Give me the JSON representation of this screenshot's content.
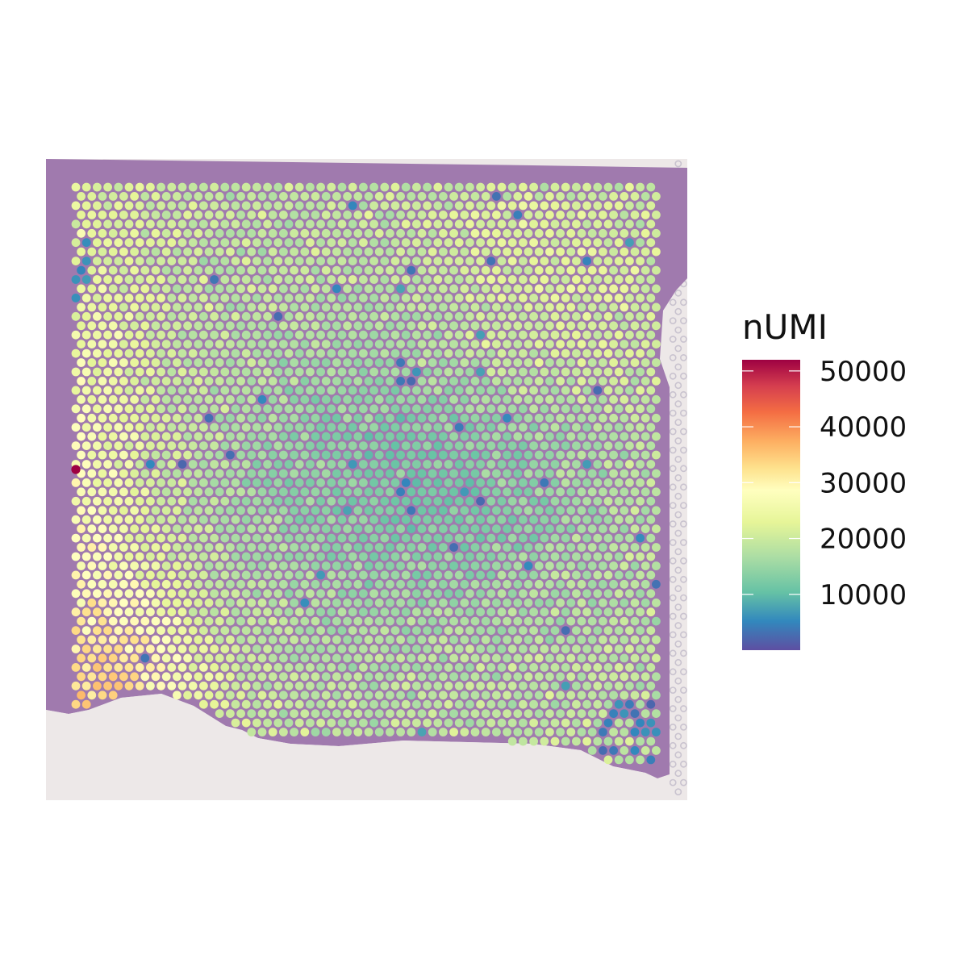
{
  "chart_data": {
    "type": "heatmap",
    "subtype": "spatial-spot-map",
    "title": "",
    "xlabel": "",
    "ylabel": "",
    "grid": false,
    "background": "H&E tissue section image",
    "legend": {
      "title": "nUMI",
      "placement": "right",
      "type": "continuous-colorbar",
      "ticks": [
        10000,
        20000,
        30000,
        40000,
        50000
      ],
      "tick_labels": [
        "10000",
        "20000",
        "30000",
        "40000",
        "50000"
      ],
      "range": [
        0,
        52000
      ],
      "palette": "Spectral (reversed)",
      "colors": [
        "#5E4FA2",
        "#3288BD",
        "#66C2A5",
        "#ABDDA4",
        "#E6F598",
        "#FFFFBF",
        "#FEE08B",
        "#FDAE61",
        "#F46D43",
        "#D53E4F",
        "#9E0142"
      ]
    },
    "spots": {
      "distribution": "most spots 12000-30000 nUMI; higher values (30000-45000) concentrated along the left and lower-left edge; lower values (<10000) scattered, with clusters in the upper-left and bottom-right corners",
      "max_value": 52000,
      "min_value": 1000
    },
    "colors": {
      "tissue_purple": "#A07AAE",
      "slide_background": "#EDE8E8",
      "empty_spot_ring": "#C9C3CF"
    }
  }
}
